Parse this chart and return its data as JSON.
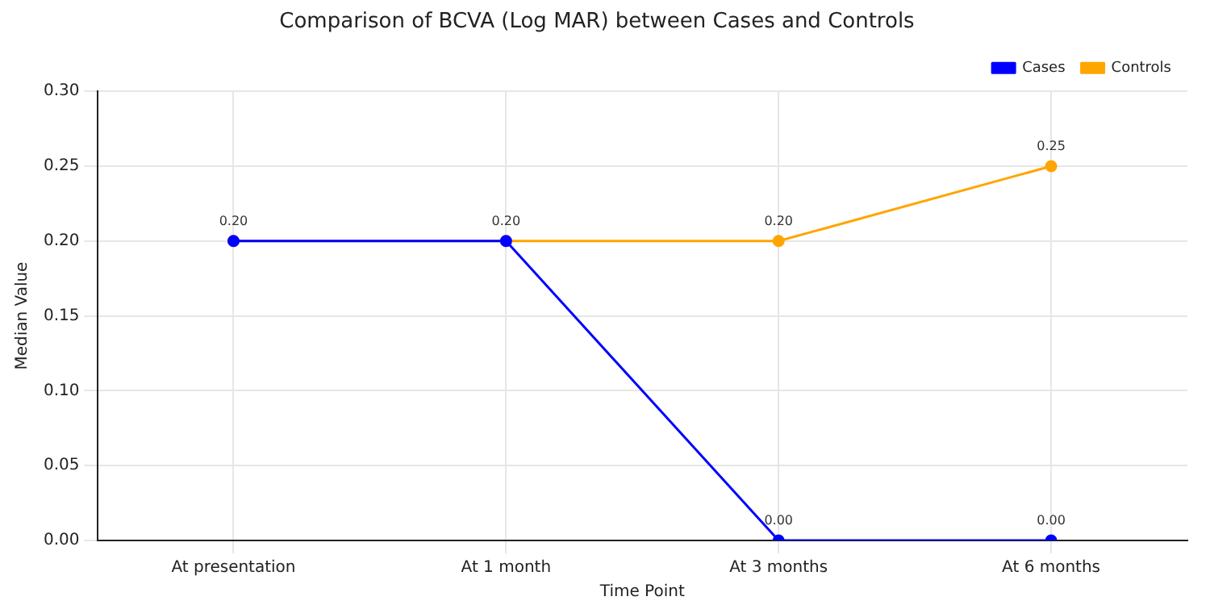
{
  "chart_data": {
    "type": "line",
    "title": "Comparison of BCVA (Log MAR) between Cases and Controls",
    "xlabel": "Time Point",
    "ylabel": "Median Value",
    "categories": [
      "At presentation",
      "At 1 month",
      "At 3 months",
      "At 6 months"
    ],
    "series": [
      {
        "name": "Cases",
        "color": "#0000ff",
        "values": [
          0.2,
          0.2,
          0,
          0
        ],
        "value_labels": [
          null,
          null,
          "0.00",
          "0.00"
        ]
      },
      {
        "name": "Controls",
        "color": "#ffa500",
        "values": [
          0.2,
          0.2,
          0.2,
          0.25
        ],
        "value_labels": [
          "0.20",
          "0.20",
          "0.20",
          "0.25"
        ]
      }
    ],
    "ylim": [
      0,
      0.3
    ],
    "yticks": [
      {
        "value": 0,
        "label": "0.00"
      },
      {
        "value": 0.05,
        "label": "0.05"
      },
      {
        "value": 0.1,
        "label": "0.10"
      },
      {
        "value": 0.15,
        "label": "0.15"
      },
      {
        "value": 0.2,
        "label": "0.20"
      },
      {
        "value": 0.25,
        "label": "0.25"
      },
      {
        "value": 0.3,
        "label": "0.30"
      }
    ],
    "grid": true,
    "legend": "top right",
    "marker": "circle",
    "line_style": "solid"
  }
}
